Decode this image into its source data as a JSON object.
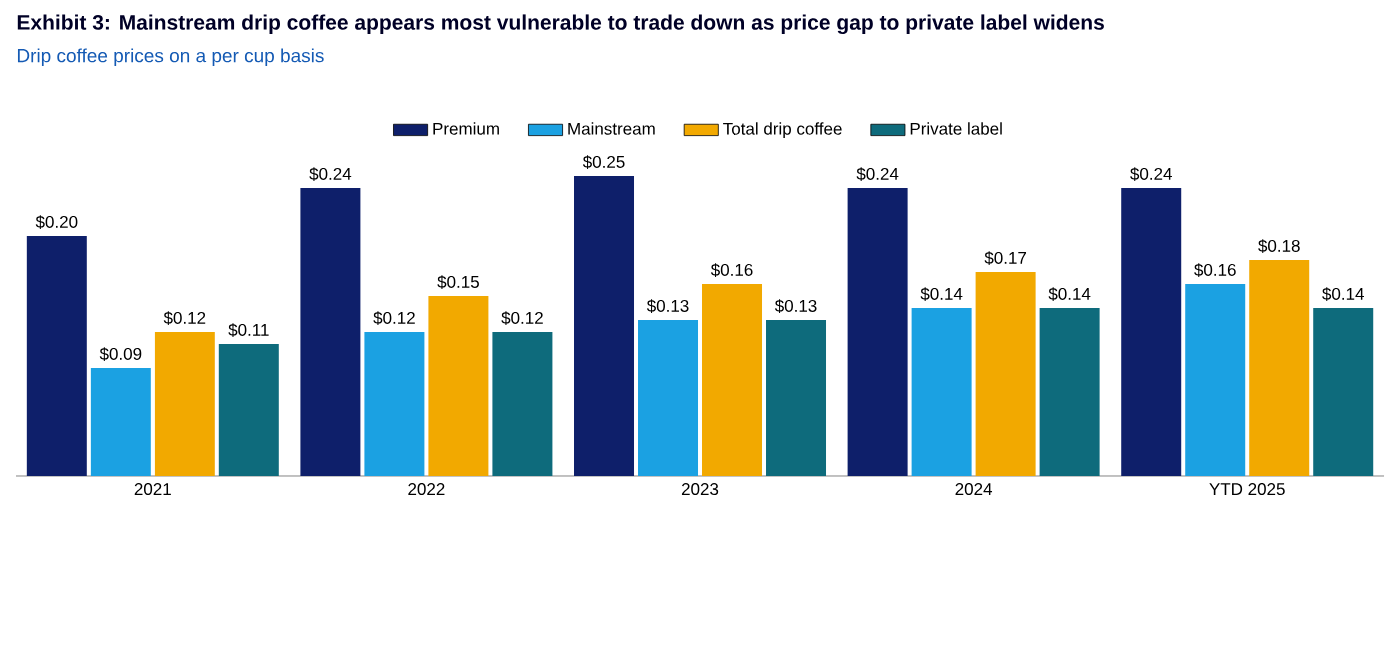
{
  "chart_data": {
    "type": "bar",
    "title": "Exhibit 3: Mainstream drip coffee appears most vulnerable to trade down as price gap to private label widens",
    "subtitle": "Drip coffee prices on a per cup basis",
    "categories": [
      "2021",
      "2022",
      "2023",
      "2024",
      "YTD 2025"
    ],
    "legend": "top",
    "series": [
      {
        "name": "Premium",
        "color": "#0e1f6a",
        "values": [
          0.2,
          0.24,
          0.25,
          0.24,
          0.24
        ],
        "value_labels": [
          "$0.20",
          "$0.24",
          "$0.25",
          "$0.24",
          "$0.24"
        ]
      },
      {
        "name": "Mainstream",
        "color": "#1ba1e2",
        "values": [
          0.09,
          0.12,
          0.13,
          0.14,
          0.16
        ],
        "value_labels": [
          "$0.09",
          "$0.12",
          "$0.13",
          "$0.14",
          "$0.16"
        ]
      },
      {
        "name": "Total drip coffee",
        "color": "#f2a900",
        "values": [
          0.12,
          0.15,
          0.16,
          0.17,
          0.18
        ],
        "value_labels": [
          "$0.12",
          "$0.15",
          "$0.16",
          "$0.17",
          "$0.18"
        ]
      },
      {
        "name": "Private label",
        "color": "#0e6b7c",
        "values": [
          0.11,
          0.12,
          0.13,
          0.14,
          0.14
        ],
        "value_labels": [
          "$0.11",
          "$0.12",
          "$0.13",
          "$0.14",
          "$0.14"
        ]
      }
    ]
  }
}
